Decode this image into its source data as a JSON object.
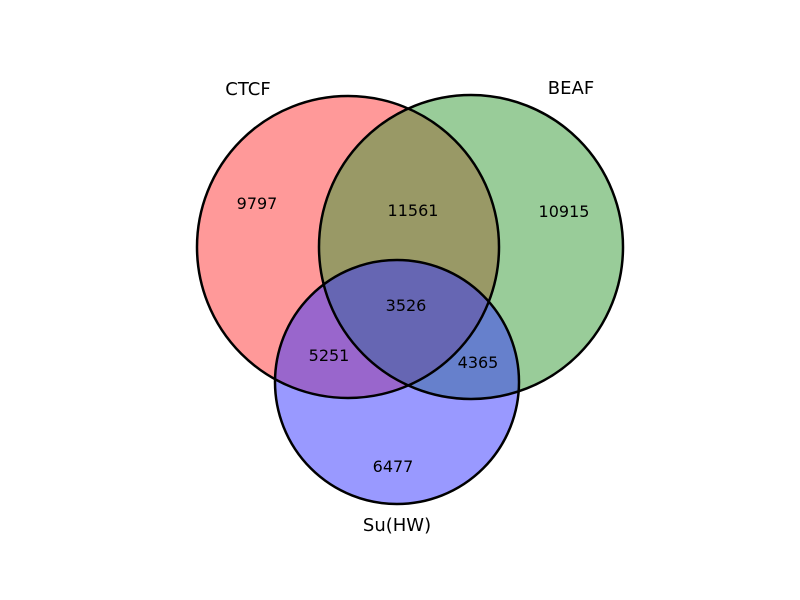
{
  "venn": {
    "sets": [
      {
        "name": "CTCF",
        "color": "#ff3333"
      },
      {
        "name": "BEAF",
        "color": "#339933"
      },
      {
        "name": "Su(HW)",
        "color": "#3333ff"
      }
    ],
    "fill_opacity": 0.5,
    "regions": {
      "ctcf_only": "9797",
      "beaf_only": "10915",
      "suhw_only": "6477",
      "ctcf_beaf": "11561",
      "ctcf_suhw": "5251",
      "beaf_suhw": "4365",
      "all_three": "3526"
    }
  }
}
